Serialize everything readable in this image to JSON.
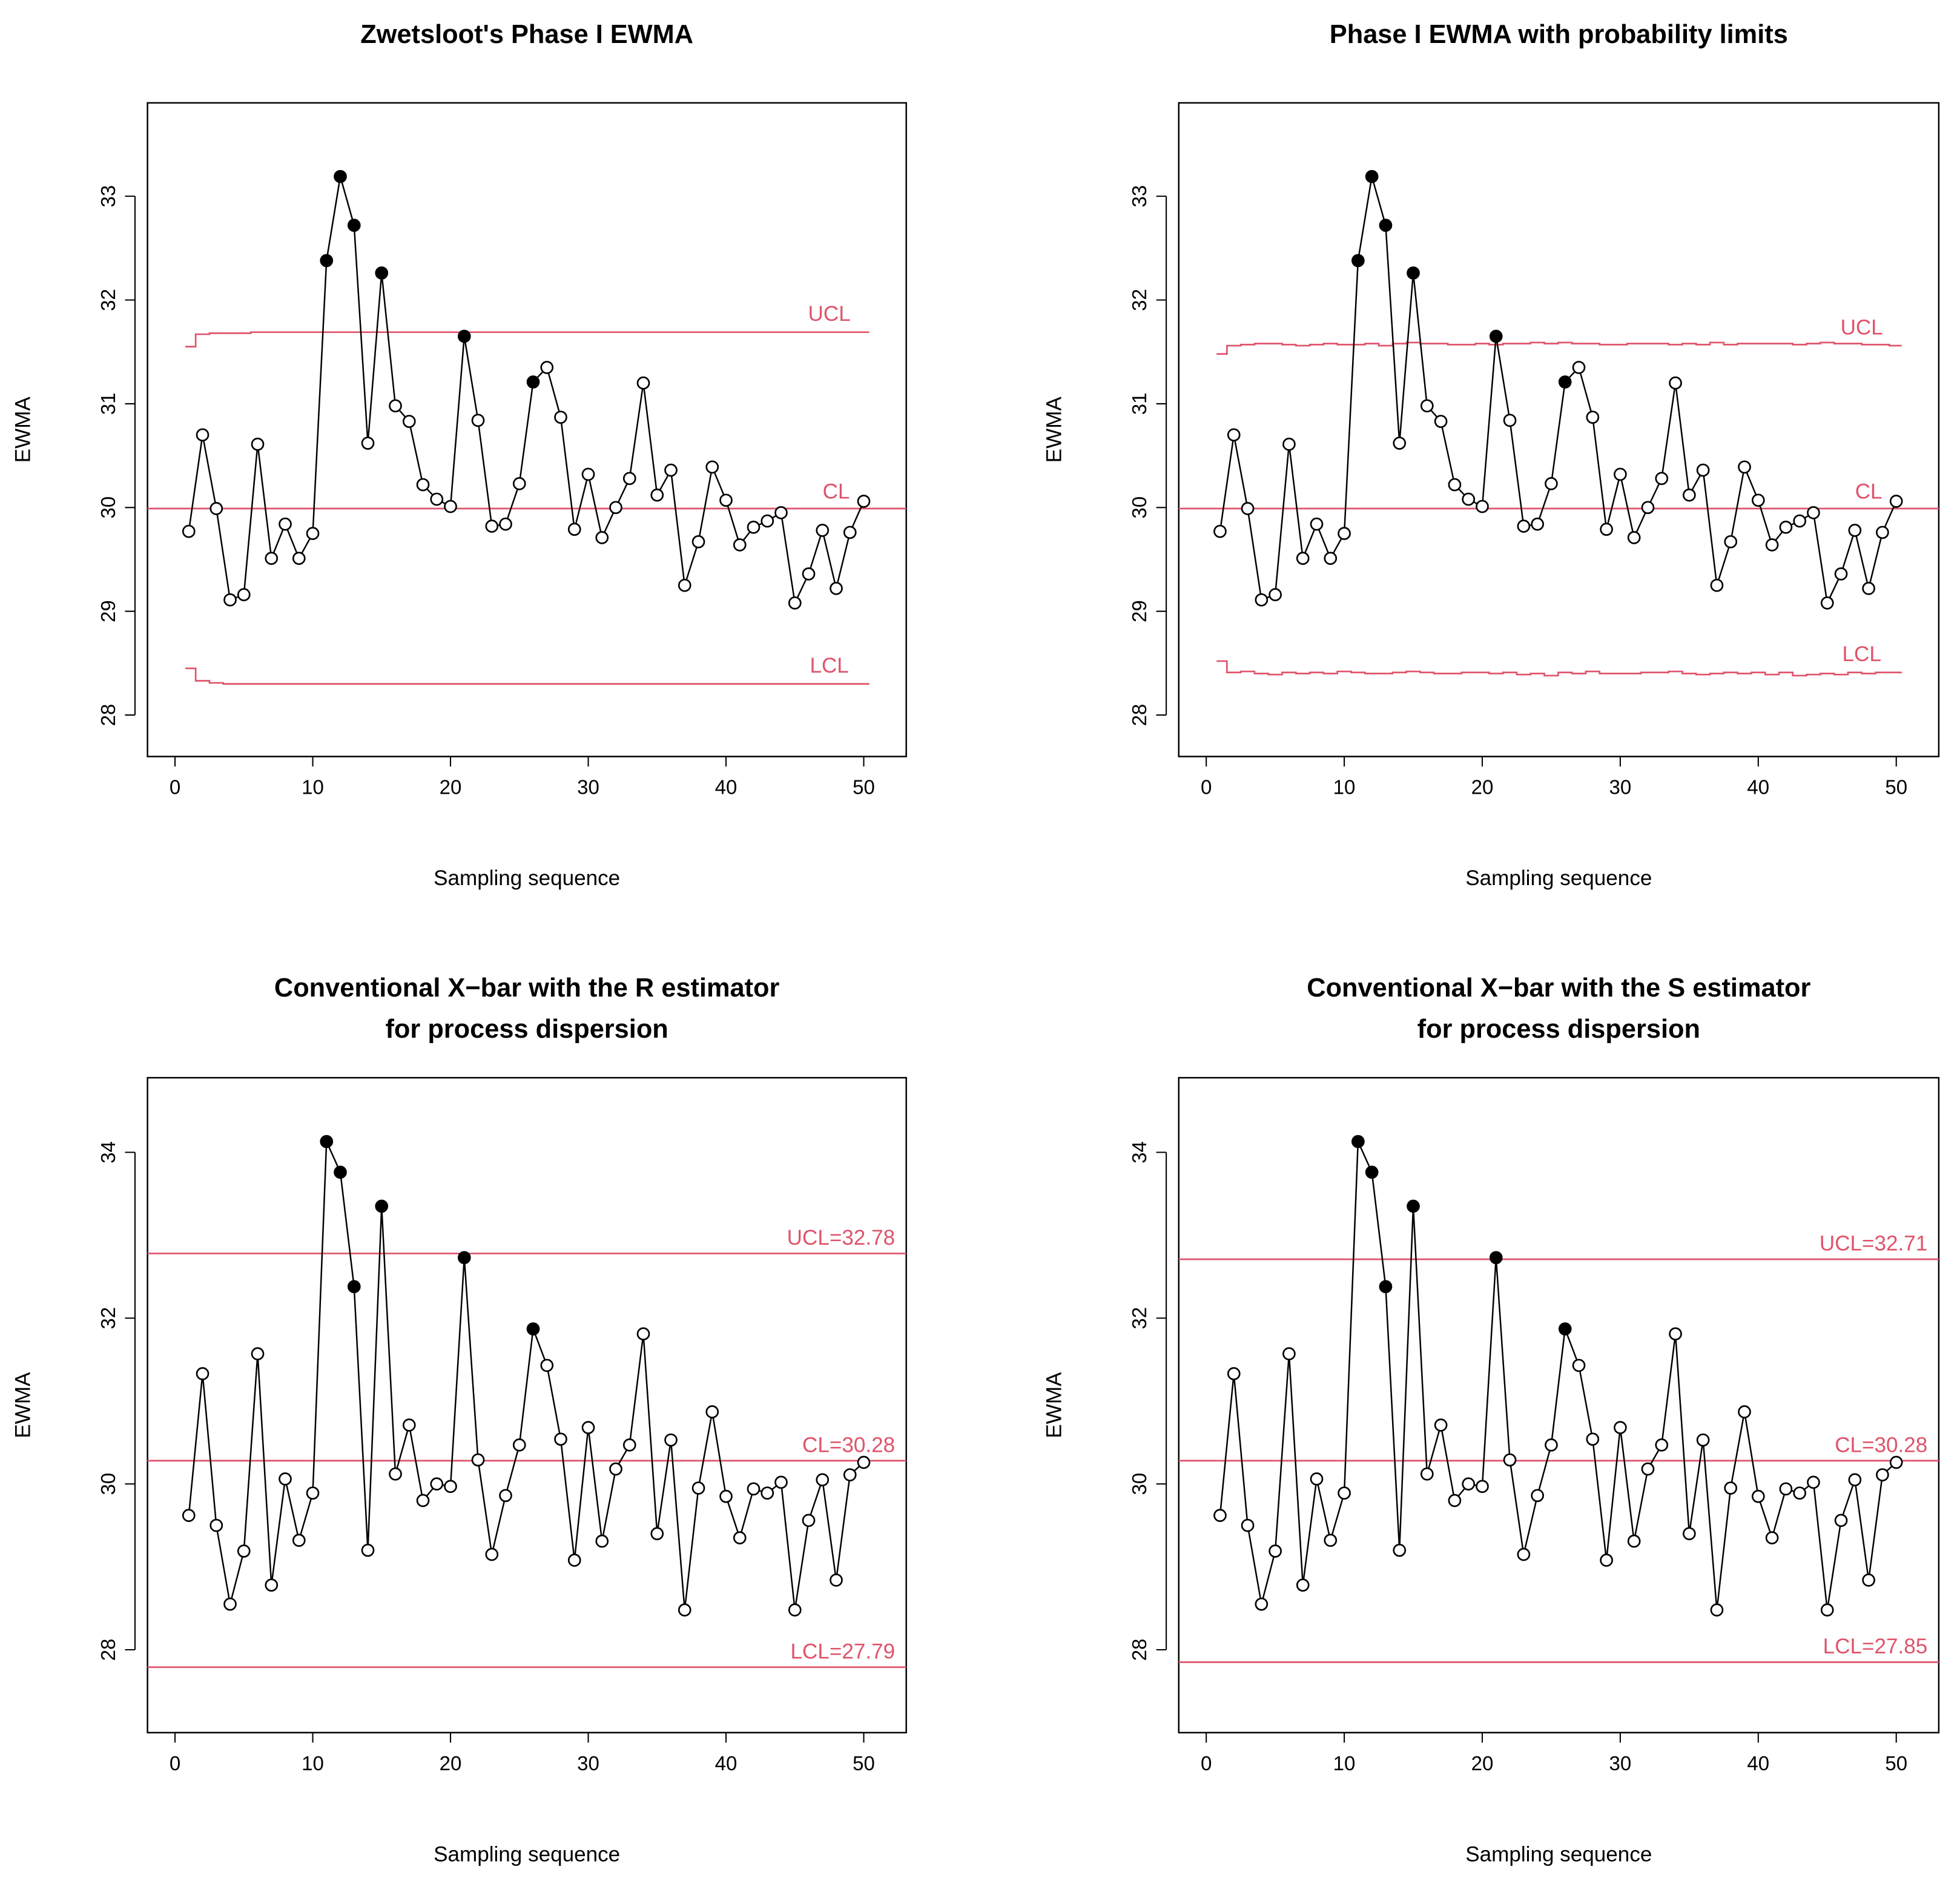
{
  "colors": {
    "limit": "#DF536B",
    "point": "#000000"
  },
  "chart_data": [
    {
      "type": "line",
      "title": "Zwetsloot's Phase I EWMA",
      "title2": "",
      "xlabel": "Sampling sequence",
      "ylabel": "EWMA",
      "xlim": [
        0,
        50
      ],
      "ylim": [
        27.6,
        33.9
      ],
      "xticks": [
        0,
        10,
        20,
        30,
        40,
        50
      ],
      "yticks": [
        28,
        29,
        30,
        31,
        32,
        33
      ],
      "values": [
        29.77,
        30.7,
        29.99,
        29.11,
        29.16,
        30.61,
        29.51,
        29.84,
        29.51,
        29.75,
        32.38,
        33.19,
        32.72,
        30.62,
        32.26,
        30.98,
        30.83,
        30.22,
        30.08,
        30.01,
        31.65,
        30.84,
        29.82,
        29.84,
        30.23,
        31.21,
        31.35,
        30.87,
        29.79,
        30.32,
        29.71,
        30.0,
        30.28,
        31.2,
        30.12,
        30.36,
        29.25,
        29.67,
        30.39,
        30.07,
        29.64,
        29.81,
        29.87,
        29.95,
        29.08,
        29.36,
        29.78,
        29.22,
        29.76,
        30.06
      ],
      "signals": [
        11,
        12,
        13,
        15,
        21,
        26
      ],
      "ucl": [
        31.55,
        31.67,
        31.68,
        31.68,
        31.68,
        31.69
      ],
      "cl": 29.99,
      "lcl": [
        28.45,
        28.33,
        28.31,
        28.3,
        28.3,
        28.3
      ],
      "labels": {
        "ucl": "UCL",
        "cl": "CL",
        "lcl": "LCL"
      }
    },
    {
      "type": "line",
      "title": "Phase I EWMA with probability limits",
      "title2": "",
      "xlabel": "Sampling sequence",
      "ylabel": "EWMA",
      "xlim": [
        0,
        50
      ],
      "ylim": [
        27.6,
        33.9
      ],
      "xticks": [
        0,
        10,
        20,
        30,
        40,
        50
      ],
      "yticks": [
        28,
        29,
        30,
        31,
        32,
        33
      ],
      "values": [
        29.77,
        30.7,
        29.99,
        29.11,
        29.16,
        30.61,
        29.51,
        29.84,
        29.51,
        29.75,
        32.38,
        33.19,
        32.72,
        30.62,
        32.26,
        30.98,
        30.83,
        30.22,
        30.08,
        30.01,
        31.65,
        30.84,
        29.82,
        29.84,
        30.23,
        31.21,
        31.35,
        30.87,
        29.79,
        30.32,
        29.71,
        30.0,
        30.28,
        31.2,
        30.12,
        30.36,
        29.25,
        29.67,
        30.39,
        30.07,
        29.64,
        29.81,
        29.87,
        29.95,
        29.08,
        29.36,
        29.78,
        29.22,
        29.76,
        30.06
      ],
      "signals": [
        11,
        12,
        13,
        15,
        21,
        26
      ],
      "ucl": [
        31.48,
        31.56,
        31.57,
        31.58,
        31.58,
        31.57,
        31.56,
        31.57,
        31.58,
        31.57,
        31.57,
        31.58,
        31.56,
        31.58,
        31.59,
        31.58,
        31.58,
        31.57,
        31.57,
        31.58,
        31.57,
        31.58,
        31.58,
        31.59,
        31.58,
        31.59,
        31.58,
        31.58,
        31.57,
        31.57,
        31.58,
        31.58,
        31.58,
        31.57,
        31.58,
        31.57,
        31.59,
        31.57,
        31.58,
        31.58,
        31.58,
        31.58,
        31.57,
        31.58,
        31.59,
        31.58,
        31.58,
        31.57,
        31.57,
        31.56
      ],
      "cl": 29.99,
      "lcl": [
        28.52,
        28.41,
        28.42,
        28.4,
        28.39,
        28.41,
        28.4,
        28.41,
        28.4,
        28.42,
        28.41,
        28.4,
        28.4,
        28.41,
        28.42,
        28.41,
        28.4,
        28.4,
        28.41,
        28.41,
        28.4,
        28.41,
        28.39,
        28.4,
        28.38,
        28.41,
        28.4,
        28.42,
        28.4,
        28.4,
        28.4,
        28.41,
        28.41,
        28.42,
        28.4,
        28.39,
        28.4,
        28.41,
        28.4,
        28.41,
        28.39,
        28.41,
        28.38,
        28.39,
        28.4,
        28.39,
        28.41,
        28.4,
        28.41,
        28.41
      ],
      "labels": {
        "ucl": "UCL",
        "cl": "CL",
        "lcl": "LCL"
      }
    },
    {
      "type": "line",
      "title": "Conventional X−bar with the R estimator",
      "title2": "for process dispersion",
      "xlabel": "Sampling sequence",
      "ylabel": "EWMA",
      "xlim": [
        0,
        50
      ],
      "ylim": [
        27.0,
        34.9
      ],
      "xticks": [
        0,
        10,
        20,
        30,
        40,
        50
      ],
      "yticks": [
        28,
        30,
        32,
        34
      ],
      "values": [
        29.62,
        31.33,
        29.5,
        28.55,
        29.19,
        31.57,
        28.78,
        30.06,
        29.32,
        29.89,
        34.13,
        33.76,
        32.38,
        29.2,
        33.35,
        30.12,
        30.71,
        29.8,
        30.0,
        29.97,
        32.73,
        30.29,
        29.15,
        29.86,
        30.47,
        31.87,
        31.43,
        30.54,
        29.08,
        30.68,
        29.31,
        30.18,
        30.47,
        31.81,
        29.4,
        30.53,
        28.48,
        29.95,
        30.87,
        29.85,
        29.35,
        29.94,
        29.89,
        30.02,
        28.48,
        29.56,
        30.05,
        28.84,
        30.11,
        30.26
      ],
      "signals": [
        11,
        12,
        13,
        15,
        21,
        26
      ],
      "ucl": 32.78,
      "cl": 30.28,
      "lcl": 27.79,
      "labels": {
        "ucl": "UCL=32.78",
        "cl": "CL=30.28",
        "lcl": "LCL=27.79"
      }
    },
    {
      "type": "line",
      "title": "Conventional X−bar with the S estimator",
      "title2": "for process dispersion",
      "xlabel": "Sampling sequence",
      "ylabel": "EWMA",
      "xlim": [
        0,
        50
      ],
      "ylim": [
        27.0,
        34.9
      ],
      "xticks": [
        0,
        10,
        20,
        30,
        40,
        50
      ],
      "yticks": [
        28,
        30,
        32,
        34
      ],
      "values": [
        29.62,
        31.33,
        29.5,
        28.55,
        29.19,
        31.57,
        28.78,
        30.06,
        29.32,
        29.89,
        34.13,
        33.76,
        32.38,
        29.2,
        33.35,
        30.12,
        30.71,
        29.8,
        30.0,
        29.97,
        32.73,
        30.29,
        29.15,
        29.86,
        30.47,
        31.87,
        31.43,
        30.54,
        29.08,
        30.68,
        29.31,
        30.18,
        30.47,
        31.81,
        29.4,
        30.53,
        28.48,
        29.95,
        30.87,
        29.85,
        29.35,
        29.94,
        29.89,
        30.02,
        28.48,
        29.56,
        30.05,
        28.84,
        30.11,
        30.26
      ],
      "signals": [
        11,
        12,
        13,
        15,
        21,
        26
      ],
      "ucl": 32.71,
      "cl": 30.28,
      "lcl": 27.85,
      "labels": {
        "ucl": "UCL=32.71",
        "cl": "CL=30.28",
        "lcl": "LCL=27.85"
      }
    }
  ]
}
